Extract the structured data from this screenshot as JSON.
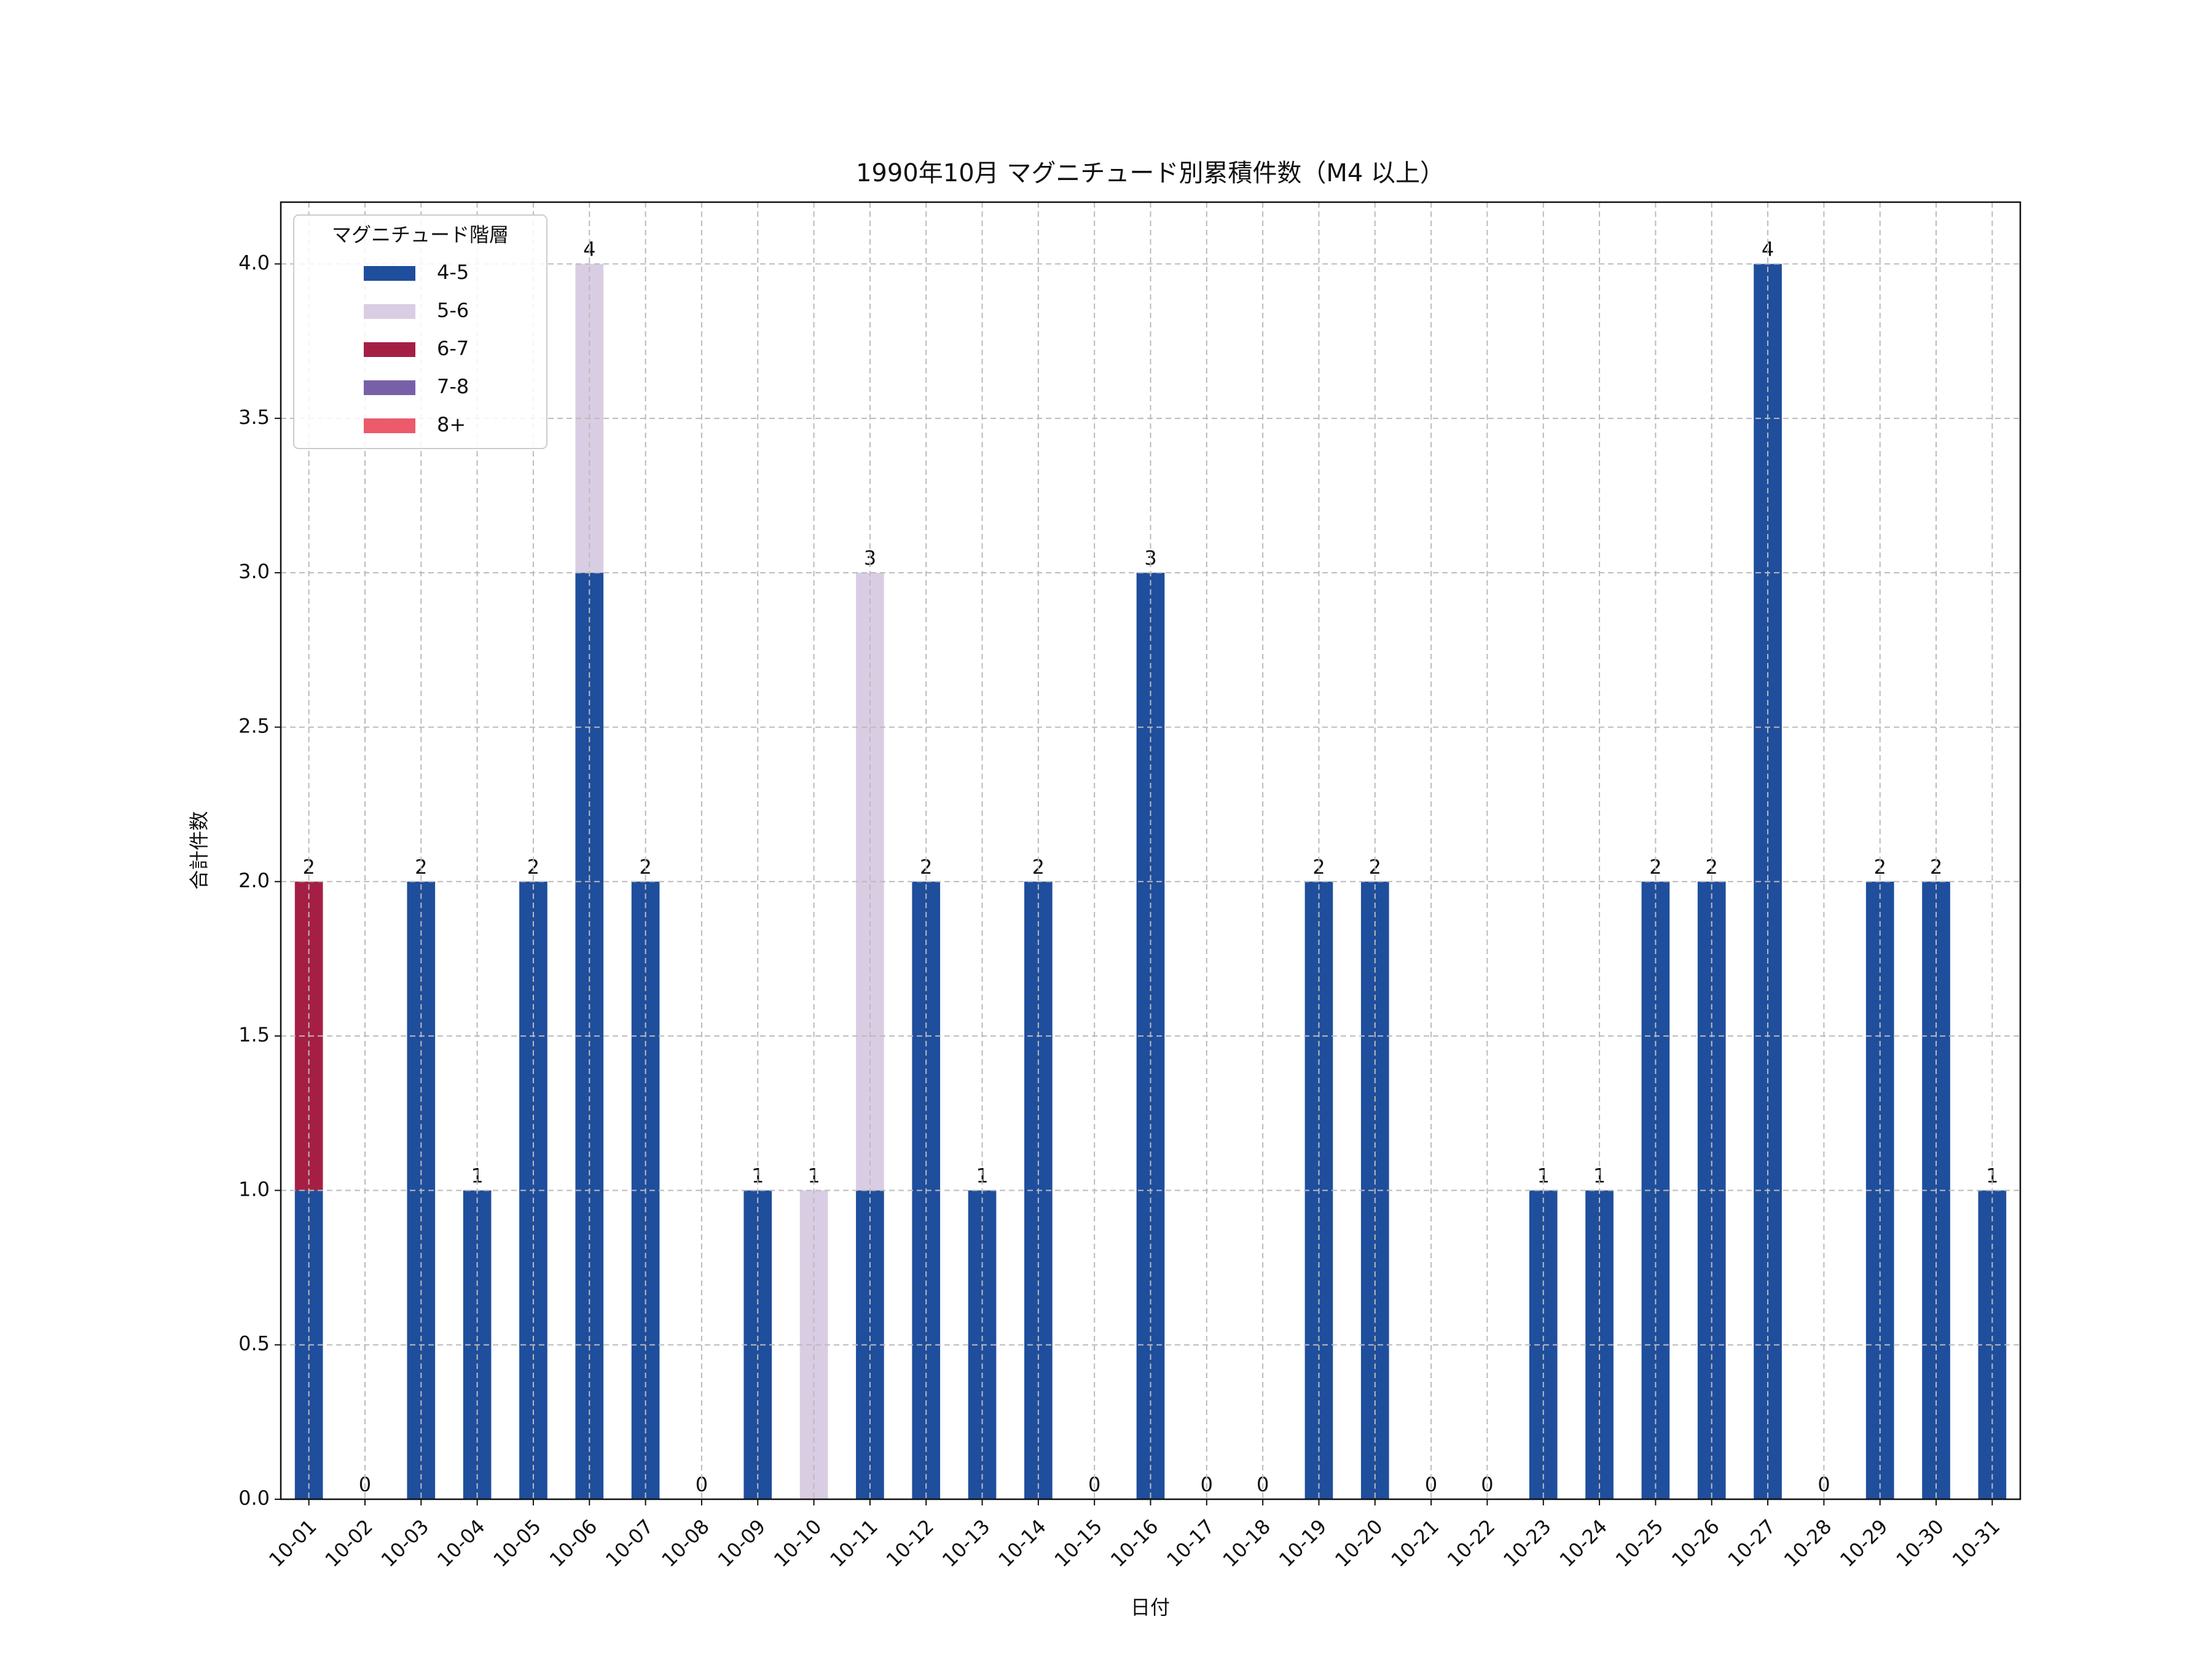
{
  "chart_data": {
    "type": "stacked-bar",
    "title": "1990年10月 マグニチュード別累積件数（M4 以上）",
    "x_label": "日付",
    "y_label": "合計件数",
    "categories": [
      "10-01",
      "10-02",
      "10-03",
      "10-04",
      "10-05",
      "10-06",
      "10-07",
      "10-08",
      "10-09",
      "10-10",
      "10-11",
      "10-12",
      "10-13",
      "10-14",
      "10-15",
      "10-16",
      "10-17",
      "10-18",
      "10-19",
      "10-20",
      "10-21",
      "10-22",
      "10-23",
      "10-24",
      "10-25",
      "10-26",
      "10-27",
      "10-28",
      "10-29",
      "10-30",
      "10-31"
    ],
    "series": [
      {
        "name": "4-5",
        "color": "#1f4e9c",
        "values": [
          1,
          0,
          2,
          1,
          2,
          3,
          2,
          0,
          1,
          0,
          1,
          2,
          1,
          2,
          0,
          3,
          0,
          0,
          2,
          2,
          0,
          0,
          1,
          1,
          2,
          2,
          4,
          0,
          2,
          2,
          1
        ]
      },
      {
        "name": "5-6",
        "color": "#d9cde3",
        "values": [
          0,
          0,
          0,
          0,
          0,
          1,
          0,
          0,
          0,
          1,
          2,
          0,
          0,
          0,
          0,
          0,
          0,
          0,
          0,
          0,
          0,
          0,
          0,
          0,
          0,
          0,
          0,
          0,
          0,
          0,
          0
        ]
      },
      {
        "name": "6-7",
        "color": "#a51f45",
        "values": [
          1,
          0,
          0,
          0,
          0,
          0,
          0,
          0,
          0,
          0,
          0,
          0,
          0,
          0,
          0,
          0,
          0,
          0,
          0,
          0,
          0,
          0,
          0,
          0,
          0,
          0,
          0,
          0,
          0,
          0,
          0
        ]
      },
      {
        "name": "7-8",
        "color": "#7760a8",
        "values": [
          0,
          0,
          0,
          0,
          0,
          0,
          0,
          0,
          0,
          0,
          0,
          0,
          0,
          0,
          0,
          0,
          0,
          0,
          0,
          0,
          0,
          0,
          0,
          0,
          0,
          0,
          0,
          0,
          0,
          0,
          0
        ]
      },
      {
        "name": "8+",
        "color": "#ec5a6b",
        "values": [
          0,
          0,
          0,
          0,
          0,
          0,
          0,
          0,
          0,
          0,
          0,
          0,
          0,
          0,
          0,
          0,
          0,
          0,
          0,
          0,
          0,
          0,
          0,
          0,
          0,
          0,
          0,
          0,
          0,
          0,
          0
        ]
      }
    ],
    "totals": [
      2,
      0,
      2,
      1,
      2,
      4,
      2,
      0,
      1,
      1,
      3,
      2,
      1,
      2,
      0,
      3,
      0,
      0,
      2,
      2,
      0,
      0,
      1,
      1,
      2,
      2,
      4,
      0,
      2,
      2,
      1
    ],
    "ylim": [
      0,
      4.2
    ],
    "yticks": [
      {
        "value": 0,
        "label": "0.0"
      },
      {
        "value": 0.5,
        "label": "0.5"
      },
      {
        "value": 1,
        "label": "1.0"
      },
      {
        "value": 1.5,
        "label": "1.5"
      },
      {
        "value": 2,
        "label": "2.0"
      },
      {
        "value": 2.5,
        "label": "2.5"
      },
      {
        "value": 3,
        "label": "3.0"
      },
      {
        "value": 3.5,
        "label": "3.5"
      },
      {
        "value": 4,
        "label": "4.0"
      }
    ],
    "grid": true,
    "legend_title": "マグニチュード階層",
    "legend_position": "upper-left"
  }
}
